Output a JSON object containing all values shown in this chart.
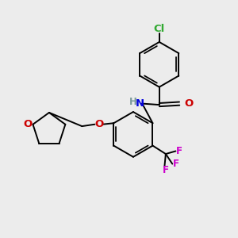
{
  "background_color": "#ececec",
  "atom_colors": {
    "C": "#000000",
    "H": "#7a9a9a",
    "N": "#0000dd",
    "O": "#cc0000",
    "F": "#cc00cc",
    "Cl": "#33aa33"
  },
  "bond_color": "#000000",
  "figsize": [
    3.0,
    3.0
  ],
  "dpi": 100
}
